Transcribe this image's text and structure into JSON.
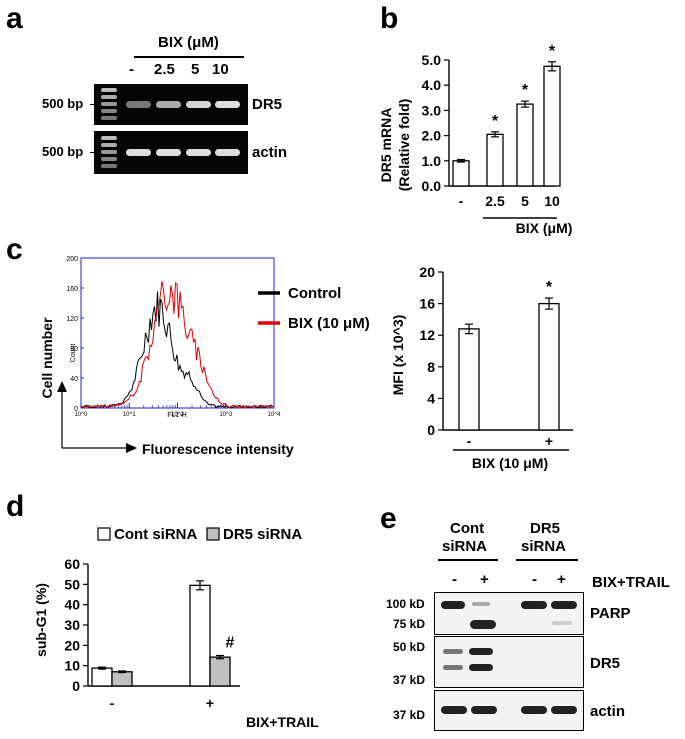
{
  "panel_a": {
    "label": "a",
    "treatment": "BIX (μM)",
    "lanes": [
      "-",
      "2.5",
      "5",
      "10"
    ],
    "marker_top": "500 bp",
    "marker_bottom": "500 bp",
    "gene_top": "DR5",
    "gene_bottom": "actin"
  },
  "panel_b": {
    "label": "b",
    "ylabel_line1": "DR5 mRNA",
    "ylabel_line2": "(Relative fold)",
    "xtitle": "BIX (μM)",
    "sig_mark": "*"
  },
  "panel_c": {
    "label": "c",
    "ylabel": "Cell number",
    "xlabel": "Fluorescence intensity",
    "legend_control": "Control",
    "legend_bix": "BIX (10 μM)",
    "control_color": "#000000",
    "bix_color": "#e00000",
    "hist_count_label": "Count",
    "hist_x_label": "FL1-H",
    "hist_y_ticks": [
      "0",
      "40",
      "80",
      "120",
      "160",
      "200"
    ],
    "hist_x_ticks": [
      "10^0",
      "10^1",
      "10^2",
      "10^3",
      "10^4"
    ],
    "mfi_ylabel": "MFI (x 10^3)",
    "mfi_xtitle": "BIX (10 μM)",
    "sig_mark": "*"
  },
  "panel_d": {
    "label": "d",
    "legend_open": "Cont siRNA",
    "legend_filled": "DR5 siRNA",
    "ylabel": "sub-G1 (%)",
    "xtitle": "BIX+TRAIL",
    "hash_mark": "#"
  },
  "panel_e": {
    "label": "e",
    "group1_line1": "Cont",
    "group1_line2": "siRNA",
    "group2_line1": "DR5",
    "group2_line2": "siRNA",
    "lanes": [
      "-",
      "+",
      "-",
      "+"
    ],
    "treatment": "BIX+TRAIL",
    "blot1_name": "PARP",
    "blot2_name": "DR5",
    "blot3_name": "actin",
    "mw_100": "100 kD",
    "mw_75": "75 kD",
    "mw_50": "50 kD",
    "mw_37a": "37 kD",
    "mw_37b": "37 kD"
  },
  "chart_data": [
    {
      "type": "bar",
      "panel": "b",
      "title": "",
      "xlabel": "BIX (μM)",
      "ylabel": "DR5 mRNA (Relative fold)",
      "categories": [
        "-",
        "2.5",
        "5",
        "10"
      ],
      "values": [
        1.0,
        2.05,
        3.25,
        4.75
      ],
      "errors": [
        0.05,
        0.1,
        0.12,
        0.18
      ],
      "significance": [
        "",
        "*",
        "*",
        "*"
      ],
      "ylim": [
        0,
        5.0
      ],
      "yticks": [
        "0.0",
        "1.0",
        "2.0",
        "3.0",
        "4.0",
        "5.0"
      ]
    },
    {
      "type": "bar",
      "panel": "c",
      "title": "",
      "xlabel": "BIX (10 μM)",
      "ylabel": "MFI (x 10^3)",
      "categories": [
        "-",
        "+"
      ],
      "values": [
        12.8,
        16.0
      ],
      "errors": [
        0.6,
        0.7
      ],
      "significance": [
        "",
        "*"
      ],
      "ylim": [
        0,
        20
      ],
      "yticks": [
        "0",
        "4",
        "8",
        "12",
        "16",
        "20"
      ]
    },
    {
      "type": "bar",
      "panel": "d",
      "title": "",
      "xlabel": "BIX+TRAIL",
      "ylabel": "sub-G1 (%)",
      "categories": [
        "-",
        "+"
      ],
      "series": [
        {
          "name": "Cont siRNA",
          "values": [
            8.8,
            49.5
          ],
          "errors": [
            0.5,
            2.2
          ],
          "fill": "#ffffff"
        },
        {
          "name": "DR5 siRNA",
          "values": [
            7.0,
            14.2
          ],
          "errors": [
            0.4,
            0.8
          ],
          "fill": "#c0c0c0"
        }
      ],
      "ylim": [
        0,
        60
      ],
      "yticks": [
        "0",
        "10",
        "20",
        "30",
        "40",
        "50",
        "60"
      ]
    }
  ]
}
